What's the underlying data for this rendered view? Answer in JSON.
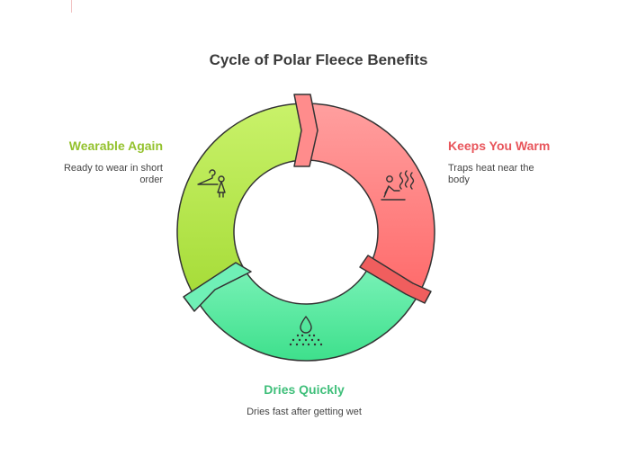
{
  "title": "Cycle of Polar Fleece Benefits",
  "stages": [
    {
      "title": "Keeps You Warm",
      "description": "Traps heat near the body",
      "icon": "person-warming-icon",
      "color": "#e8555b",
      "fill_light": "#ff9f9f",
      "fill_dark": "#ff6b6b"
    },
    {
      "title": "Dries Quickly",
      "description": "Dries fast after getting wet",
      "icon": "water-drop-icon",
      "color": "#3fbf7a",
      "fill_light": "#7af2b8",
      "fill_dark": "#3ee08c"
    },
    {
      "title": "Wearable Again",
      "description": "Ready to wear in short order",
      "icon": "hanger-icon",
      "color": "#94c22e",
      "fill_light": "#c9f26a",
      "fill_dark": "#a6dc38"
    }
  ]
}
